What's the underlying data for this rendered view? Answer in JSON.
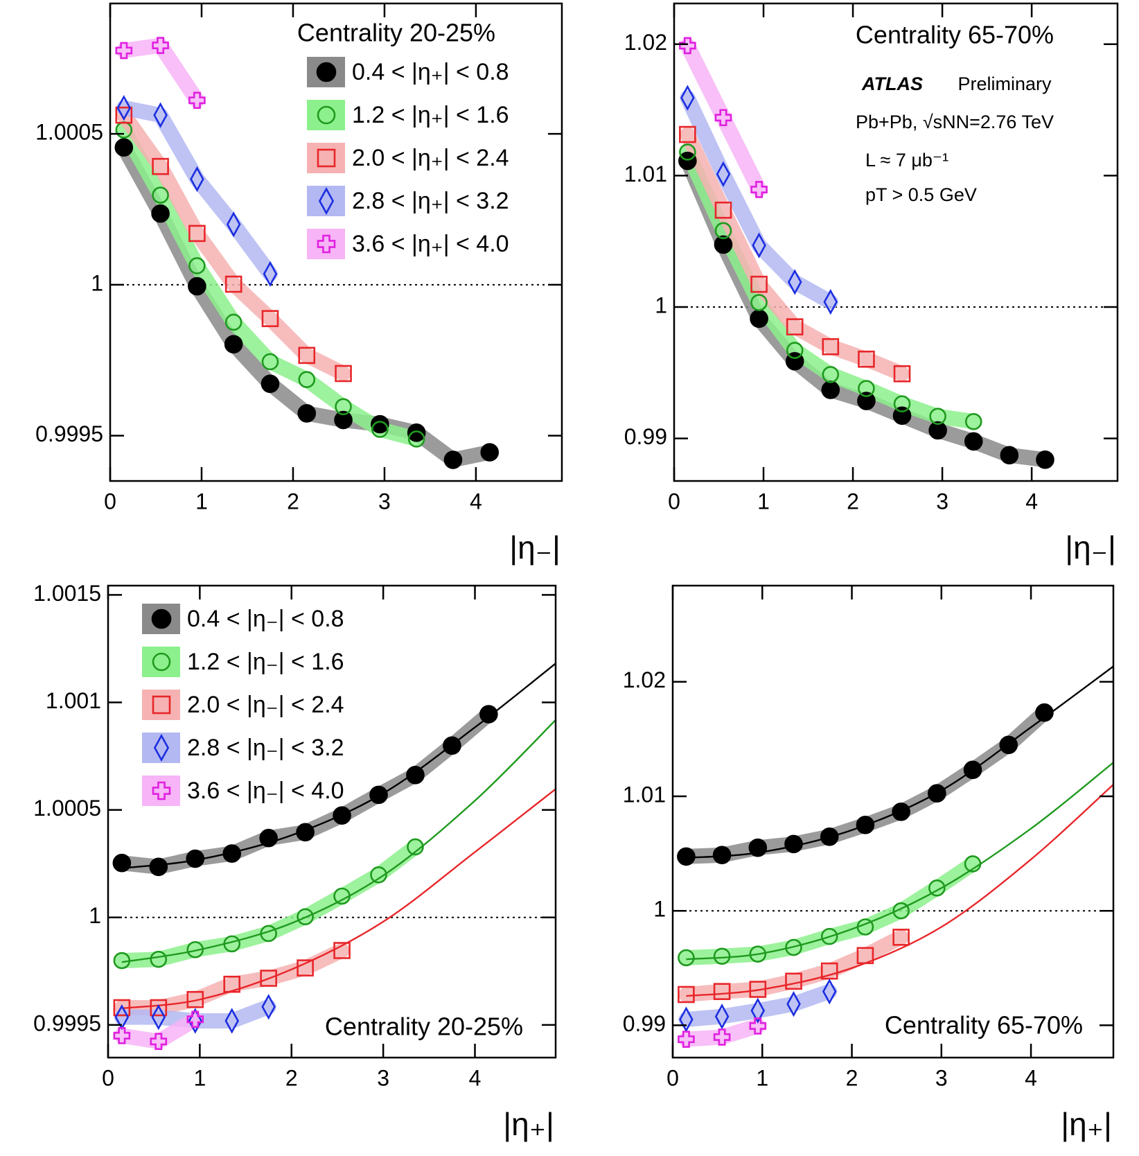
{
  "chart_data": [
    {
      "type": "line",
      "title": "Centrality 20-25%",
      "xlabel": "|η₋|",
      "x": [
        0.15,
        0.55,
        0.95,
        1.35,
        1.75,
        2.15,
        2.55,
        2.95,
        3.35,
        3.75,
        4.15
      ],
      "xlim": [
        0,
        4.94
      ],
      "ylim": [
        0.99935,
        1.000932
      ],
      "xticks": [
        0,
        1,
        2,
        3,
        4
      ],
      "yticks": [
        0.9995,
        1,
        1.0005
      ],
      "hline": 1,
      "legend": "upper right",
      "series": [
        {
          "name": "0.4 < |η₊| < 0.8",
          "color": "#000000",
          "band": "#8a8a8a",
          "marker": "filled-circle",
          "values": [
            1.000455,
            1.000236,
            0.999995,
            0.999803,
            0.999672,
            0.999574,
            0.999552,
            0.999538,
            0.99951,
            0.99942,
            0.999445
          ]
        },
        {
          "name": "1.2 < |η₊| < 1.6",
          "color": "#1f9a1f",
          "band": "#8cf08c",
          "marker": "open-circle",
          "values": [
            1.000513,
            1.000297,
            1.000063,
            0.999876,
            0.999745,
            0.999686,
            0.999596,
            0.999521,
            0.999489,
            null,
            null
          ]
        },
        {
          "name": "2.0 < |η₊| < 2.4",
          "color": "#e8262a",
          "band": "#f6b2b2",
          "marker": "open-square",
          "values": [
            1.000562,
            1.000392,
            1.00017,
            1.000002,
            0.999888,
            0.999766,
            0.999706,
            null,
            null,
            null,
            null
          ]
        },
        {
          "name": "2.8 < |η₊| < 3.2",
          "color": "#1c2ee0",
          "band": "#b3b8f2",
          "marker": "open-diamond",
          "values": [
            1.000586,
            1.000562,
            1.00035,
            1.0002,
            1.000036,
            null,
            null,
            null,
            null,
            null,
            null
          ]
        },
        {
          "name": "3.6 < |η₊| < 4.0",
          "color": "#e020e0",
          "band": "#f7b4f7",
          "marker": "open-cross",
          "values": [
            1.000776,
            1.000793,
            1.000611,
            null,
            null,
            null,
            null,
            null,
            null,
            null,
            null
          ]
        }
      ]
    },
    {
      "type": "line",
      "title": "Centrality 65-70%",
      "xlabel": "|η₋|",
      "annotations": [
        "ATLAS",
        "Preliminary",
        "Pb+Pb, √sNN=2.76 TeV",
        "L ≈ 7 μb⁻¹",
        "pT > 0.5 GeV"
      ],
      "x": [
        0.15,
        0.55,
        0.95,
        1.35,
        1.75,
        2.15,
        2.55,
        2.95,
        3.35,
        3.75,
        4.15
      ],
      "xlim": [
        0,
        4.96
      ],
      "ylim": [
        0.98676,
        1.0231
      ],
      "xticks": [
        0,
        1,
        2,
        3,
        4
      ],
      "yticks": [
        0.99,
        1,
        1.01,
        1.02
      ],
      "hline": 1,
      "series": [
        {
          "color": "#000000",
          "band": "#8a8a8a",
          "marker": "filled-circle",
          "values": [
            1.01112,
            1.00475,
            0.99911,
            0.99587,
            0.99369,
            0.99285,
            0.99173,
            0.99061,
            0.98977,
            0.98872,
            0.98838
          ]
        },
        {
          "color": "#1f9a1f",
          "band": "#8cf08c",
          "marker": "open-circle",
          "values": [
            1.01179,
            1.00581,
            1.00034,
            0.9967,
            0.99486,
            0.9938,
            0.99263,
            0.99168,
            0.99128,
            null,
            null
          ]
        },
        {
          "color": "#e8262a",
          "band": "#f6b2b2",
          "marker": "open-square",
          "values": [
            1.01313,
            1.00737,
            1.00173,
            0.99849,
            0.99698,
            0.99603,
            0.99492,
            null,
            null,
            null,
            null
          ]
        },
        {
          "color": "#1c2ee0",
          "band": "#b3b8f2",
          "marker": "open-diamond",
          "values": [
            1.01592,
            1.01011,
            1.00469,
            1.0019,
            1.00039,
            null,
            null,
            null,
            null,
            null,
            null
          ]
        },
        {
          "color": "#e020e0",
          "band": "#f7b4f7",
          "marker": "open-cross",
          "values": [
            1.01989,
            1.01441,
            1.00894,
            null,
            null,
            null,
            null,
            null,
            null,
            null,
            null
          ]
        }
      ]
    },
    {
      "type": "line",
      "title": "Centrality 20-25%",
      "xlabel": "|η₊|",
      "x": [
        0.15,
        0.55,
        0.95,
        1.35,
        1.75,
        2.15,
        2.55,
        2.95,
        3.35,
        3.75,
        4.15
      ],
      "xlim": [
        0,
        4.88
      ],
      "ylim": [
        0.999348,
        1.001543
      ],
      "xticks": [
        0,
        1,
        2,
        3,
        4
      ],
      "yticks": [
        0.9995,
        1,
        1.0005,
        1.001,
        1.0015
      ],
      "hline": 1,
      "legend": "upper left",
      "series": [
        {
          "name": "0.4 < |η₋| < 0.8",
          "color": "#000000",
          "band": "#8a8a8a",
          "marker": "filled-circle",
          "values": [
            1.000253,
            1.000235,
            1.000273,
            1.000297,
            1.000369,
            1.000396,
            1.000474,
            1.00057,
            1.000662,
            1.000799,
            1.000945
          ],
          "fit": {
            "x": [
              0.15,
              1,
              2,
              3,
              4,
              4.88
            ],
            "values": [
              1.000229,
              1.00027,
              1.000382,
              1.000577,
              1.000884,
              1.001181
            ]
          }
        },
        {
          "name": "1.2 < |η₋| < 1.6",
          "color": "#1f9a1f",
          "band": "#8cf08c",
          "marker": "open-circle",
          "values": [
            0.999799,
            0.999805,
            0.99985,
            0.999877,
            0.999925,
            1.000003,
            1.000099,
            1.000198,
            1.000328,
            null,
            null
          ],
          "fit": {
            "x": [
              0.15,
              1,
              2,
              3,
              4,
              4.88
            ],
            "values": [
              0.999792,
              0.99985,
              0.999973,
              1.000195,
              1.000543,
              1.000918
            ]
          }
        },
        {
          "name": "2.0 < |η₋| < 2.4",
          "color": "#e8262a",
          "band": "#f6b2b2",
          "marker": "open-square",
          "values": [
            0.99958,
            0.99958,
            0.999618,
            0.999689,
            0.999717,
            0.999765,
            0.999846,
            null,
            null,
            null,
            null
          ],
          "fit": {
            "x": [
              0.15,
              1,
              2,
              3,
              4,
              4.88
            ],
            "values": [
              0.999577,
              0.999618,
              0.999758,
              0.99998,
              1.000304,
              1.000597
            ]
          }
        },
        {
          "name": "2.8 < |η₋| < 3.2",
          "color": "#1c2ee0",
          "band": "#b3b8f2",
          "marker": "open-diamond",
          "values": [
            0.999536,
            0.999536,
            0.999519,
            0.999519,
            0.999584,
            null,
            null,
            null,
            null,
            null,
            null
          ]
        },
        {
          "name": "3.6 < |η₋| < 4.0",
          "color": "#e020e0",
          "band": "#f7b4f7",
          "marker": "open-cross",
          "values": [
            0.99945,
            0.999423,
            0.999526,
            null,
            null,
            null,
            null,
            null,
            null,
            null,
            null
          ]
        }
      ]
    },
    {
      "type": "line",
      "title": "Centrality 65-70%",
      "xlabel": "|η₊|",
      "x": [
        0.15,
        0.55,
        0.95,
        1.35,
        1.75,
        2.15,
        2.55,
        2.95,
        3.35,
        3.75,
        4.15
      ],
      "xlim": [
        0,
        4.92
      ],
      "ylim": [
        0.98718,
        1.0284
      ],
      "xticks": [
        0,
        1,
        2,
        3,
        4
      ],
      "yticks": [
        0.99,
        1,
        1.01,
        1.02
      ],
      "hline": 1,
      "series": [
        {
          "color": "#000000",
          "band": "#8a8a8a",
          "marker": "filled-circle",
          "values": [
            1.00474,
            1.00487,
            1.00551,
            1.00583,
            1.00647,
            1.0075,
            1.00865,
            1.01026,
            1.01231,
            1.01449,
            1.01731
          ],
          "fit": {
            "x": [
              0.15,
              1,
              2,
              3,
              4,
              4.92
            ],
            "values": [
              1.00462,
              1.00513,
              1.00705,
              1.01051,
              1.01603,
              1.02135
            ]
          }
        },
        {
          "color": "#1f9a1f",
          "band": "#8cf08c",
          "marker": "open-circle",
          "values": [
            0.9959,
            0.99603,
            0.99622,
            0.9968,
            0.99776,
            0.99859,
            1.0,
            1.00199,
            1.0041,
            null,
            null
          ],
          "fit": {
            "x": [
              0.15,
              1,
              2,
              3,
              4,
              4.92
            ],
            "values": [
              0.99577,
              0.99628,
              0.9984,
              1.00199,
              1.00718,
              1.01295
            ]
          }
        },
        {
          "color": "#e8262a",
          "band": "#f6b2b2",
          "marker": "open-square",
          "values": [
            0.99269,
            0.99295,
            0.99314,
            0.99385,
            0.99474,
            0.99609,
            0.99769,
            null,
            null,
            null,
            null
          ],
          "fit": {
            "x": [
              0.15,
              1,
              2,
              3,
              4,
              4.92
            ],
            "values": [
              0.99256,
              0.99314,
              0.995,
              0.99859,
              1.00449,
              1.01103
            ]
          }
        },
        {
          "color": "#1c2ee0",
          "band": "#b3b8f2",
          "marker": "open-diamond",
          "values": [
            0.99051,
            0.99077,
            0.99128,
            0.99186,
            0.99295,
            null,
            null,
            null,
            null,
            null,
            null
          ]
        },
        {
          "color": "#e020e0",
          "band": "#f7b4f7",
          "marker": "open-cross",
          "values": [
            0.98878,
            0.98897,
            0.98994,
            null,
            null,
            null,
            null,
            null,
            null,
            null,
            null
          ]
        }
      ]
    }
  ]
}
